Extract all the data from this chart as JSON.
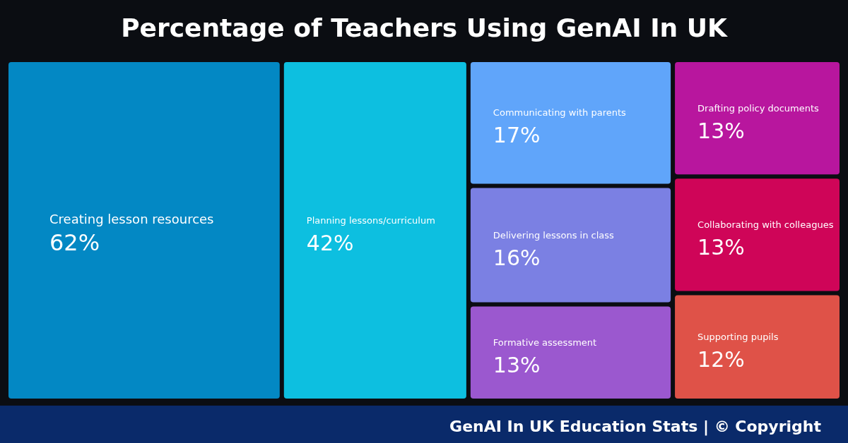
{
  "chart_data": {
    "type": "other",
    "title": "Percentage of Teachers Using GenAI In UK",
    "categories": [
      "Creating lesson resources",
      "Planning lessons/curriculum",
      "Communicating with parents",
      "Delivering lessons in class",
      "Formative assessment",
      "Drafting policy documents",
      "Collaborating with colleagues",
      "Supporting pupils"
    ],
    "values": [
      62,
      42,
      17,
      16,
      13,
      13,
      13,
      12
    ],
    "value_labels": [
      "62%",
      "42%",
      "17%",
      "16%",
      "13%",
      "13%",
      "13%",
      "12%"
    ],
    "colors": [
      "#0388c4",
      "#0dbfe0",
      "#60a5fa",
      "#7b80e3",
      "#9b58cf",
      "#b8169e",
      "#cf0558",
      "#df5248"
    ],
    "annotations": [
      "GenAI In UK Education Stats | © Copyright"
    ]
  }
}
